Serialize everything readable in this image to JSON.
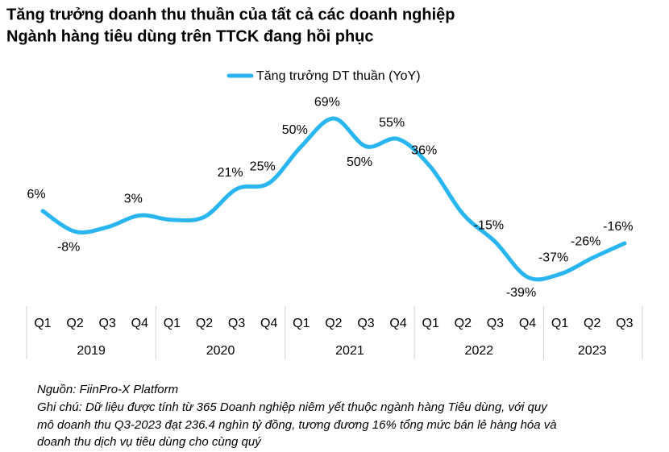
{
  "title": [
    "Tăng trưởng doanh thu thuần của tất cả các doanh nghiệp",
    "Ngành hàng tiêu dùng trên TTCK đang hồi phục"
  ],
  "chart_data": {
    "type": "line",
    "groups": [
      {
        "name": "2019",
        "categories": [
          "Q1",
          "Q2",
          "Q3",
          "Q4"
        ]
      },
      {
        "name": "2020",
        "categories": [
          "Q1",
          "Q2",
          "Q3",
          "Q4"
        ]
      },
      {
        "name": "2021",
        "categories": [
          "Q1",
          "Q2",
          "Q3",
          "Q4"
        ]
      },
      {
        "name": "2022",
        "categories": [
          "Q1",
          "Q2",
          "Q3",
          "Q4"
        ]
      },
      {
        "name": "2023",
        "categories": [
          "Q1",
          "Q2",
          "Q3"
        ]
      }
    ],
    "series": [
      {
        "name": "Tăng trưởng DT thuần (YoY)",
        "color": "#29b6f0",
        "values": [
          6,
          -8,
          -5,
          3,
          0,
          2,
          21,
          25,
          50,
          69,
          50,
          55,
          36,
          4,
          -15,
          -39,
          -37,
          -26,
          -16
        ],
        "value_labels": [
          "6%",
          "-8%",
          null,
          "3%",
          null,
          null,
          "21%",
          "25%",
          "50%",
          "69%",
          "50%",
          "55%",
          "36%",
          null,
          "-15%",
          "-39%",
          "-37%",
          "-26%",
          "-16%"
        ]
      }
    ],
    "ylim": [
      -50,
      80
    ]
  },
  "notes": [
    "Nguồn: FiinPro-X Platform",
    "Ghi chú: Dữ liệu được tính từ 365 Doanh nghiệp niêm yết thuộc ngành hàng Tiêu dùng, với quy",
    "mô doanh thu Q3-2023 đạt 236.4 nghìn tỷ đồng, tương đương 16% tổng mức bán lẻ hàng hóa và",
    "doanh thu dịch vụ tiêu dùng cho cùng quý"
  ]
}
